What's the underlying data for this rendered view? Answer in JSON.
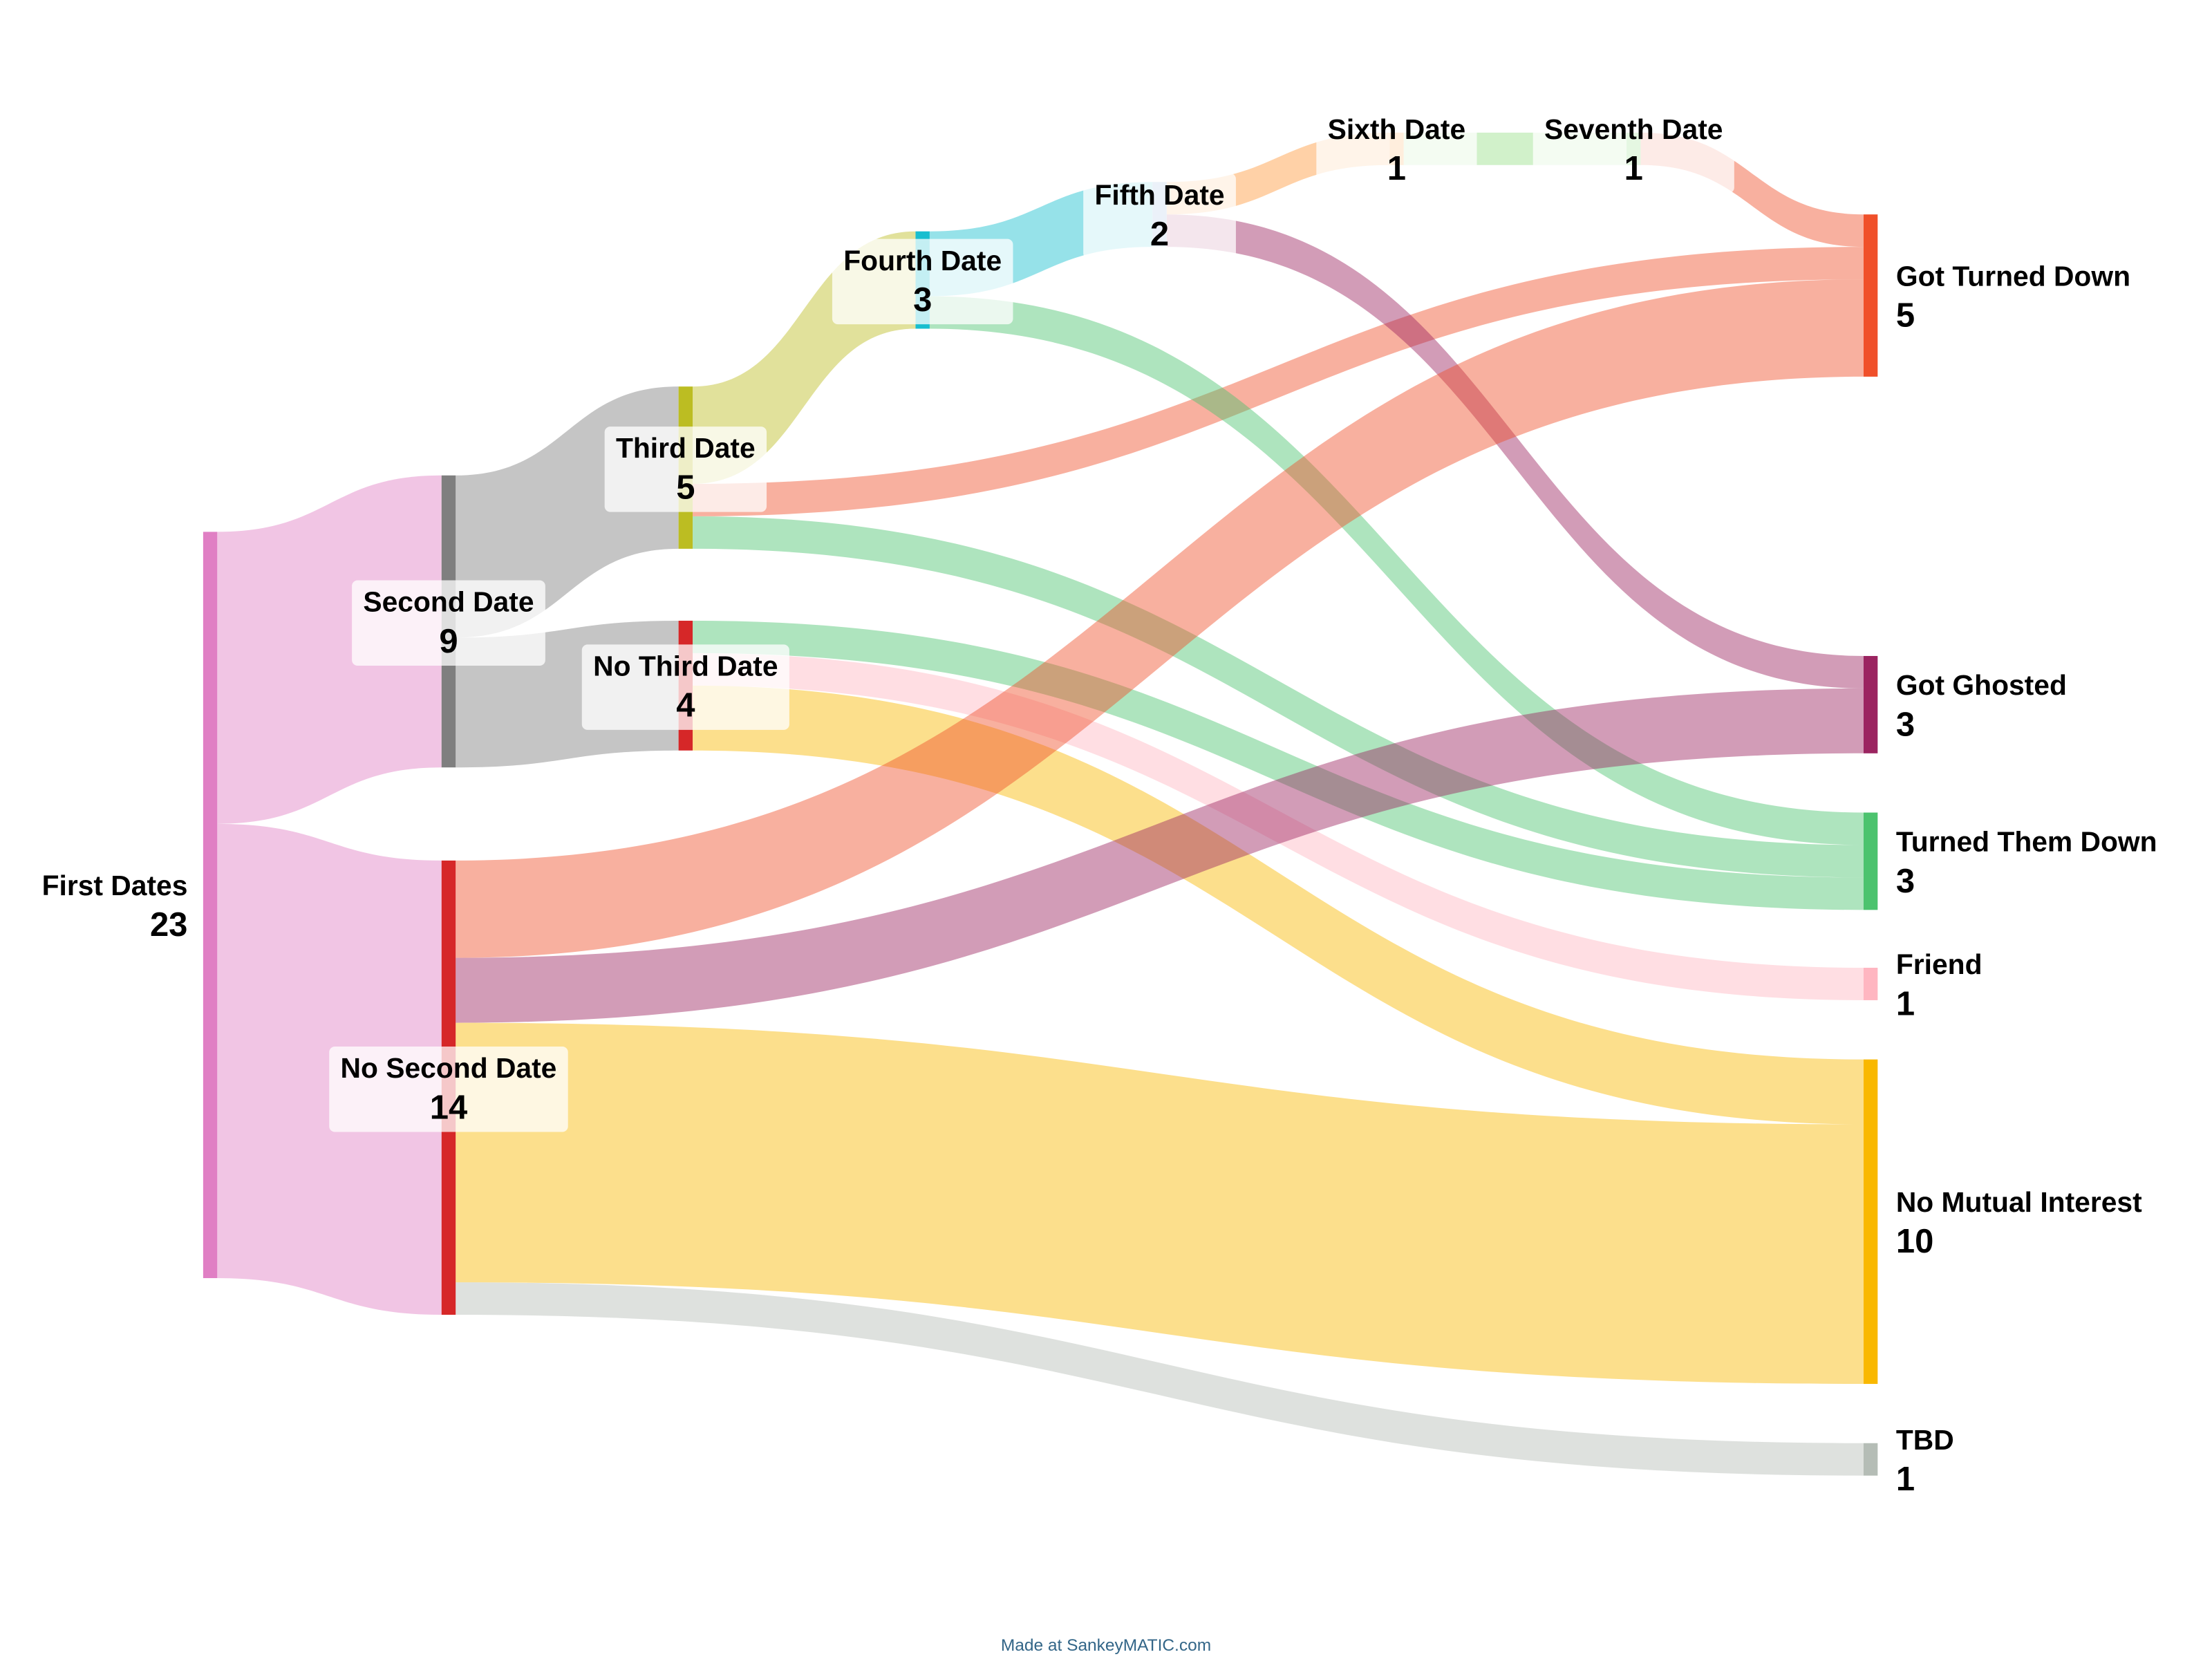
{
  "chart_data": {
    "type": "sankey",
    "link_opacity": 0.45,
    "nodes": [
      {
        "name": "First Dates",
        "value": 23,
        "color": "#e07fc4"
      },
      {
        "name": "Second Date",
        "value": 9,
        "color": "#7f7f7f"
      },
      {
        "name": "No Second Date",
        "value": 14,
        "color": "#d62728"
      },
      {
        "name": "Third Date",
        "value": 5,
        "color": "#bcbd22"
      },
      {
        "name": "No Third Date",
        "value": 4,
        "color": "#d62728"
      },
      {
        "name": "Fourth Date",
        "value": 3,
        "color": "#17becf"
      },
      {
        "name": "Fifth Date",
        "value": 2,
        "color": "#aec7e8"
      },
      {
        "name": "Sixth Date",
        "value": 1,
        "color": "#ffbb78"
      },
      {
        "name": "Seventh Date",
        "value": 1,
        "color": "#98df8a"
      },
      {
        "name": "Got Turned Down",
        "value": 5,
        "color": "#f0502a"
      },
      {
        "name": "Got Ghosted",
        "value": 3,
        "color": "#9b2460"
      },
      {
        "name": "Turned Them Down",
        "value": 3,
        "color": "#4cc36e"
      },
      {
        "name": "Friend",
        "value": 1,
        "color": "#ffb6c1"
      },
      {
        "name": "No Mutual Interest",
        "value": 10,
        "color": "#f9b800"
      },
      {
        "name": "TBD",
        "value": 1,
        "color": "#b5bdb6"
      }
    ],
    "links": [
      {
        "source": "First Dates",
        "target": "Second Date",
        "value": 9,
        "color": "#e07fc4"
      },
      {
        "source": "First Dates",
        "target": "No Second Date",
        "value": 14,
        "color": "#e07fc4"
      },
      {
        "source": "Second Date",
        "target": "Third Date",
        "value": 5,
        "color": "#7f7f7f"
      },
      {
        "source": "Second Date",
        "target": "No Third Date",
        "value": 4,
        "color": "#7f7f7f"
      },
      {
        "source": "Third Date",
        "target": "Fourth Date",
        "value": 3,
        "color": "#bcbd22"
      },
      {
        "source": "Third Date",
        "target": "Got Turned Down",
        "value": 1,
        "color": "#f0502a"
      },
      {
        "source": "Third Date",
        "target": "Turned Them Down",
        "value": 1,
        "color": "#4cc36e"
      },
      {
        "source": "No Third Date",
        "target": "Turned Them Down",
        "value": 1,
        "color": "#4cc36e"
      },
      {
        "source": "No Third Date",
        "target": "Friend",
        "value": 1,
        "color": "#ffb6c1"
      },
      {
        "source": "No Third Date",
        "target": "No Mutual Interest",
        "value": 2,
        "color": "#f9b800"
      },
      {
        "source": "Fourth Date",
        "target": "Fifth Date",
        "value": 2,
        "color": "#17becf"
      },
      {
        "source": "Fourth Date",
        "target": "Turned Them Down",
        "value": 1,
        "color": "#4cc36e"
      },
      {
        "source": "Fifth Date",
        "target": "Sixth Date",
        "value": 1,
        "color": "#ff9a3c"
      },
      {
        "source": "Fifth Date",
        "target": "Got Ghosted",
        "value": 1,
        "color": "#9b2460"
      },
      {
        "source": "Sixth Date",
        "target": "Seventh Date",
        "value": 1,
        "color": "#98df8a"
      },
      {
        "source": "Seventh Date",
        "target": "Got Turned Down",
        "value": 1,
        "color": "#f0502a"
      },
      {
        "source": "No Second Date",
        "target": "Got Turned Down",
        "value": 3,
        "color": "#f0502a"
      },
      {
        "source": "No Second Date",
        "target": "Got Ghosted",
        "value": 2,
        "color": "#9b2460"
      },
      {
        "source": "No Second Date",
        "target": "No Mutual Interest",
        "value": 8,
        "color": "#f9b800"
      },
      {
        "source": "No Second Date",
        "target": "TBD",
        "value": 1,
        "color": "#b5bdb6"
      }
    ],
    "footer": "Made at SankeyMATIC.com"
  }
}
